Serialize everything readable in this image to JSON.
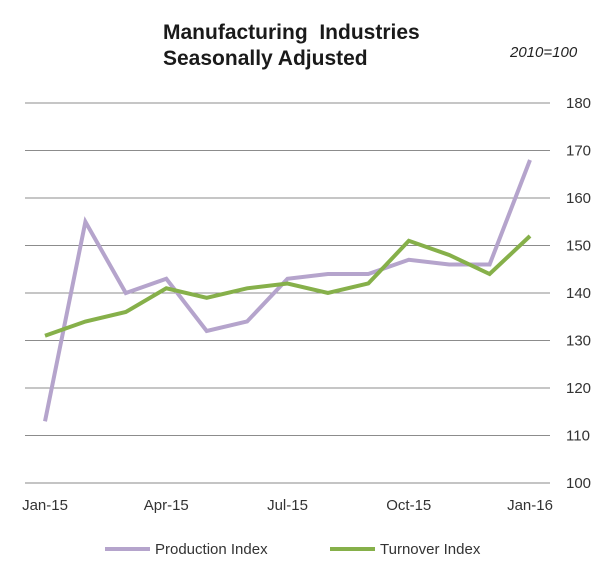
{
  "chart_data": {
    "type": "line",
    "title_line1": "Manufacturing  Industries",
    "title_line2": "Seasonally Adjusted",
    "index_note": "2010=100",
    "categories": [
      "Jan-15",
      "Feb-15",
      "Mar-15",
      "Apr-15",
      "May-15",
      "Jun-15",
      "Jul-15",
      "Aug-15",
      "Sep-15",
      "Oct-15",
      "Nov-15",
      "Dec-15",
      "Jan-16"
    ],
    "x_tick_labels": [
      "Jan-15",
      "Apr-15",
      "Jul-15",
      "Oct-15",
      "Jan-16"
    ],
    "x_tick_indices": [
      0,
      3,
      6,
      9,
      12
    ],
    "ylim": [
      100,
      180
    ],
    "y_ticks": [
      100,
      110,
      120,
      130,
      140,
      150,
      160,
      170,
      180
    ],
    "grid": true,
    "legend_position": "bottom",
    "series": [
      {
        "name": "Production Index",
        "color": "#b5a4cc",
        "values": [
          113,
          155,
          140,
          143,
          132,
          134,
          143,
          144,
          144,
          147,
          146,
          146,
          168
        ]
      },
      {
        "name": "Turnover Index",
        "color": "#86b04a",
        "values": [
          131,
          134,
          136,
          141,
          139,
          141,
          142,
          140,
          142,
          151,
          148,
          144,
          152
        ]
      }
    ]
  }
}
